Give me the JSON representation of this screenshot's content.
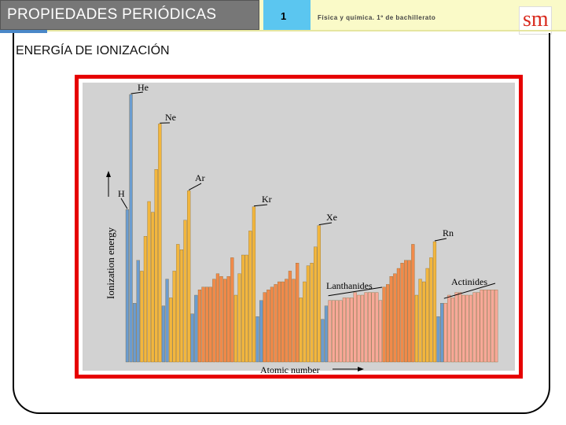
{
  "header": {
    "title": "PROPIEDADES PERIÓDICAS",
    "unit_number": "1",
    "course": "Física y química. 1º de bachillerato",
    "logo": "sm"
  },
  "section": {
    "title": "ENERGÍA DE IONIZACIÓN"
  },
  "colors": {
    "frame": "#e60000",
    "plot_bg": "#d2d2d2",
    "s_block": "#6b9ccf",
    "p_block": "#f2b63e",
    "d_block": "#f18a4a",
    "f_block": "#f8a898"
  },
  "chart_data": {
    "type": "bar",
    "title": "",
    "xlabel": "Atomic number",
    "ylabel": "Ionization energy",
    "y_units": "relative",
    "ylim": [
      0,
      100
    ],
    "grid": false,
    "legend": "none",
    "blocks": [
      "s",
      "s",
      "s",
      "s",
      "p",
      "p",
      "p",
      "p",
      "p",
      "p",
      "s",
      "s",
      "p",
      "p",
      "p",
      "p",
      "p",
      "p",
      "s",
      "s",
      "d",
      "d",
      "d",
      "d",
      "d",
      "d",
      "d",
      "d",
      "d",
      "d",
      "p",
      "p",
      "p",
      "p",
      "p",
      "p",
      "s",
      "s",
      "d",
      "d",
      "d",
      "d",
      "d",
      "d",
      "d",
      "d",
      "d",
      "d",
      "p",
      "p",
      "p",
      "p",
      "p",
      "p",
      "s",
      "s",
      "f",
      "f",
      "f",
      "f",
      "f",
      "f",
      "f",
      "f",
      "f",
      "f",
      "f",
      "f",
      "f",
      "f",
      "f",
      "d",
      "d",
      "d",
      "d",
      "d",
      "d",
      "d",
      "d",
      "d",
      "p",
      "p",
      "p",
      "p",
      "p",
      "p",
      "s",
      "s",
      "f",
      "f",
      "f",
      "f",
      "f",
      "f",
      "f",
      "f",
      "f",
      "f",
      "f",
      "f",
      "f",
      "f",
      "f"
    ],
    "values": [
      57,
      100,
      22,
      38,
      34,
      47,
      60,
      56,
      72,
      89,
      21,
      31,
      24,
      34,
      44,
      42,
      53,
      64,
      18,
      25,
      27,
      28,
      28,
      28,
      31,
      33,
      32,
      31,
      32,
      39,
      25,
      33,
      40,
      40,
      49,
      58,
      17,
      23,
      26,
      27,
      28,
      29,
      30,
      30,
      31,
      34,
      31,
      37,
      24,
      30,
      36,
      37,
      43,
      51,
      16,
      21,
      23,
      23,
      23,
      23,
      24,
      24,
      24,
      26,
      25,
      25,
      26,
      26,
      26,
      26,
      23,
      28,
      29,
      32,
      33,
      35,
      37,
      38,
      38,
      44,
      25,
      31,
      30,
      35,
      39,
      45,
      17,
      22,
      22,
      25,
      24,
      26,
      26,
      25,
      25,
      25,
      26,
      26,
      27,
      27,
      27,
      27,
      27
    ],
    "annotations": [
      "He",
      "Ne",
      "Ar",
      "Kr",
      "Xe",
      "Rn",
      "H",
      "Lanthanides",
      "Actinides"
    ]
  }
}
